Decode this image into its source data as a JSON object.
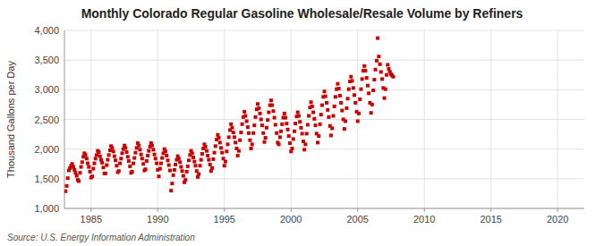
{
  "chart_data": {
    "type": "scatter",
    "title": "Monthly Colorado Regular Gasoline Wholesale/Resale Volume by Refiners",
    "y_label": "Thousand Gallons per Day",
    "source": "Source: U.S. Energy Information Administration",
    "color": "#CC0000",
    "marker": "square",
    "grid": true,
    "xlim": [
      1983,
      2022
    ],
    "ylim": [
      1000,
      4000
    ],
    "xticks": [
      1985,
      1990,
      1995,
      2000,
      2005,
      2010,
      2015,
      2020
    ],
    "yticks": [
      {
        "value": 1000,
        "label": "1,000"
      },
      {
        "value": 1500,
        "label": "1,500"
      },
      {
        "value": 2000,
        "label": "2,000"
      },
      {
        "value": 2500,
        "label": "2,500"
      },
      {
        "value": 3000,
        "label": "3,000"
      },
      {
        "value": 3500,
        "label": "3,500"
      },
      {
        "value": 4000,
        "label": "4,000"
      }
    ],
    "x": [
      1983.08,
      1983.17,
      1983.25,
      1983.33,
      1983.42,
      1983.5,
      1983.58,
      1983.67,
      1983.75,
      1983.83,
      1983.92,
      1984.0,
      1984.08,
      1984.17,
      1984.25,
      1984.33,
      1984.42,
      1984.5,
      1984.58,
      1984.67,
      1984.75,
      1984.83,
      1984.92,
      1985.0,
      1985.08,
      1985.17,
      1985.25,
      1985.33,
      1985.42,
      1985.5,
      1985.58,
      1985.67,
      1985.75,
      1985.83,
      1985.92,
      1986.0,
      1986.08,
      1986.17,
      1986.25,
      1986.33,
      1986.42,
      1986.5,
      1986.58,
      1986.67,
      1986.75,
      1986.83,
      1986.92,
      1987.0,
      1987.08,
      1987.17,
      1987.25,
      1987.33,
      1987.42,
      1987.5,
      1987.58,
      1987.67,
      1987.75,
      1987.83,
      1987.92,
      1988.0,
      1988.08,
      1988.17,
      1988.25,
      1988.33,
      1988.42,
      1988.5,
      1988.58,
      1988.67,
      1988.75,
      1988.83,
      1988.92,
      1989.0,
      1989.08,
      1989.17,
      1989.25,
      1989.33,
      1989.42,
      1989.5,
      1989.58,
      1989.67,
      1989.75,
      1989.83,
      1989.92,
      1990.0,
      1990.08,
      1990.17,
      1990.25,
      1990.33,
      1990.42,
      1990.5,
      1990.58,
      1990.67,
      1990.75,
      1990.83,
      1990.92,
      1991.0,
      1991.08,
      1991.17,
      1991.25,
      1991.33,
      1991.42,
      1991.5,
      1991.58,
      1991.67,
      1991.75,
      1991.83,
      1991.92,
      1992.0,
      1992.08,
      1992.17,
      1992.25,
      1992.33,
      1992.42,
      1992.5,
      1992.58,
      1992.67,
      1992.75,
      1992.83,
      1992.92,
      1993.0,
      1993.08,
      1993.17,
      1993.25,
      1993.33,
      1993.42,
      1993.5,
      1993.58,
      1993.67,
      1993.75,
      1993.83,
      1993.92,
      1994.0,
      1994.08,
      1994.17,
      1994.25,
      1994.33,
      1994.42,
      1994.5,
      1994.58,
      1994.67,
      1994.75,
      1994.83,
      1994.92,
      1995.0,
      1995.08,
      1995.17,
      1995.25,
      1995.33,
      1995.42,
      1995.5,
      1995.58,
      1995.67,
      1995.75,
      1995.83,
      1995.92,
      1996.0,
      1996.08,
      1996.17,
      1996.25,
      1996.33,
      1996.42,
      1996.5,
      1996.58,
      1996.67,
      1996.75,
      1996.83,
      1996.92,
      1997.0,
      1997.08,
      1997.17,
      1997.25,
      1997.33,
      1997.42,
      1997.5,
      1997.58,
      1997.67,
      1997.75,
      1997.83,
      1997.92,
      1998.0,
      1998.08,
      1998.17,
      1998.25,
      1998.33,
      1998.42,
      1998.5,
      1998.58,
      1998.67,
      1998.75,
      1998.83,
      1998.92,
      1999.0,
      1999.08,
      1999.17,
      1999.25,
      1999.33,
      1999.42,
      1999.5,
      1999.58,
      1999.67,
      1999.75,
      1999.83,
      1999.92,
      2000.0,
      2000.08,
      2000.17,
      2000.25,
      2000.33,
      2000.42,
      2000.5,
      2000.58,
      2000.67,
      2000.75,
      2000.83,
      2000.92,
      2001.0,
      2001.08,
      2001.17,
      2001.25,
      2001.33,
      2001.42,
      2001.5,
      2001.58,
      2001.67,
      2001.75,
      2001.83,
      2001.92,
      2002.0,
      2002.08,
      2002.17,
      2002.25,
      2002.33,
      2002.42,
      2002.5,
      2002.58,
      2002.67,
      2002.75,
      2002.83,
      2002.92,
      2003.0,
      2003.08,
      2003.17,
      2003.25,
      2003.33,
      2003.42,
      2003.5,
      2003.58,
      2003.67,
      2003.75,
      2003.83,
      2003.92,
      2004.0,
      2004.08,
      2004.17,
      2004.25,
      2004.33,
      2004.42,
      2004.5,
      2004.58,
      2004.67,
      2004.75,
      2004.83,
      2004.92,
      2005.0,
      2005.08,
      2005.17,
      2005.25,
      2005.33,
      2005.42,
      2005.5,
      2005.58,
      2005.67,
      2005.75,
      2005.83,
      2005.92,
      2006.0,
      2006.08,
      2006.17,
      2006.25,
      2006.33,
      2006.42,
      2006.5,
      2006.58,
      2006.67,
      2006.75,
      2006.83,
      2006.92,
      2007.0,
      2007.08,
      2007.17,
      2007.25,
      2007.33,
      2007.42,
      2007.5,
      2007.58,
      2007.67
    ],
    "values": [
      1290,
      1380,
      1510,
      1640,
      1680,
      1720,
      1750,
      1700,
      1650,
      1600,
      1550,
      1480,
      1460,
      1600,
      1700,
      1780,
      1870,
      1930,
      1900,
      1840,
      1760,
      1700,
      1620,
      1520,
      1540,
      1670,
      1760,
      1840,
      1900,
      1970,
      1950,
      1880,
      1820,
      1770,
      1690,
      1590,
      1590,
      1730,
      1820,
      1900,
      1980,
      2050,
      2020,
      1960,
      1880,
      1810,
      1720,
      1610,
      1630,
      1760,
      1840,
      1930,
      2000,
      2060,
      2020,
      1950,
      1870,
      1800,
      1710,
      1600,
      1620,
      1760,
      1850,
      1940,
      2020,
      2100,
      2060,
      1990,
      1910,
      1840,
      1750,
      1640,
      1660,
      1800,
      1890,
      1970,
      2040,
      2100,
      2060,
      1990,
      1910,
      1840,
      1760,
      1650,
      1540,
      1670,
      1760,
      1850,
      1930,
      2000,
      1960,
      1890,
      1810,
      1730,
      1640,
      1300,
      1420,
      1560,
      1650,
      1740,
      1820,
      1880,
      1840,
      1780,
      1700,
      1630,
      1550,
      1440,
      1480,
      1620,
      1710,
      1810,
      1900,
      1970,
      1930,
      1860,
      1790,
      1720,
      1630,
      1530,
      1580,
      1720,
      1820,
      1920,
      2010,
      2080,
      2040,
      1970,
      1890,
      1820,
      1740,
      1630,
      1680,
      1830,
      1940,
      2050,
      2160,
      2240,
      2190,
      2110,
      2020,
      1940,
      1840,
      1720,
      1790,
      1960,
      2080,
      2200,
      2320,
      2420,
      2360,
      2280,
      2200,
      2110,
      2010,
      1890,
      1970,
      2150,
      2280,
      2420,
      2540,
      2630,
      2560,
      2470,
      2370,
      2270,
      2150,
      2010,
      2080,
      2270,
      2400,
      2540,
      2670,
      2760,
      2690,
      2600,
      2500,
      2400,
      2270,
      2120,
      2190,
      2360,
      2490,
      2620,
      2740,
      2820,
      2740,
      2640,
      2530,
      2410,
      2270,
      2110,
      2080,
      2200,
      2300,
      2420,
      2530,
      2600,
      2530,
      2430,
      2330,
      2220,
      2100,
      1960,
      2010,
      2170,
      2300,
      2430,
      2550,
      2620,
      2560,
      2460,
      2360,
      2260,
      2130,
      1990,
      2080,
      2260,
      2410,
      2560,
      2700,
      2790,
      2720,
      2620,
      2510,
      2400,
      2260,
      2110,
      2220,
      2420,
      2580,
      2740,
      2880,
      2970,
      2890,
      2780,
      2660,
      2540,
      2390,
      2230,
      2350,
      2560,
      2720,
      2880,
      3010,
      3100,
      3020,
      2900,
      2780,
      2650,
      2500,
      2340,
      2470,
      2690,
      2850,
      3010,
      3140,
      3220,
      3150,
      3030,
      2910,
      2780,
      2630,
      2470,
      2600,
      2840,
      3010,
      3180,
      3320,
      3400,
      3320,
      3200,
      3070,
      2940,
      2780,
      2610,
      2750,
      2990,
      3170,
      3340,
      3490,
      3870,
      3560,
      3430,
      3300,
      3180,
      3030,
      2860,
      3010,
      3250,
      3420,
      3350,
      3300,
      3260,
      3240,
      3220
    ]
  }
}
